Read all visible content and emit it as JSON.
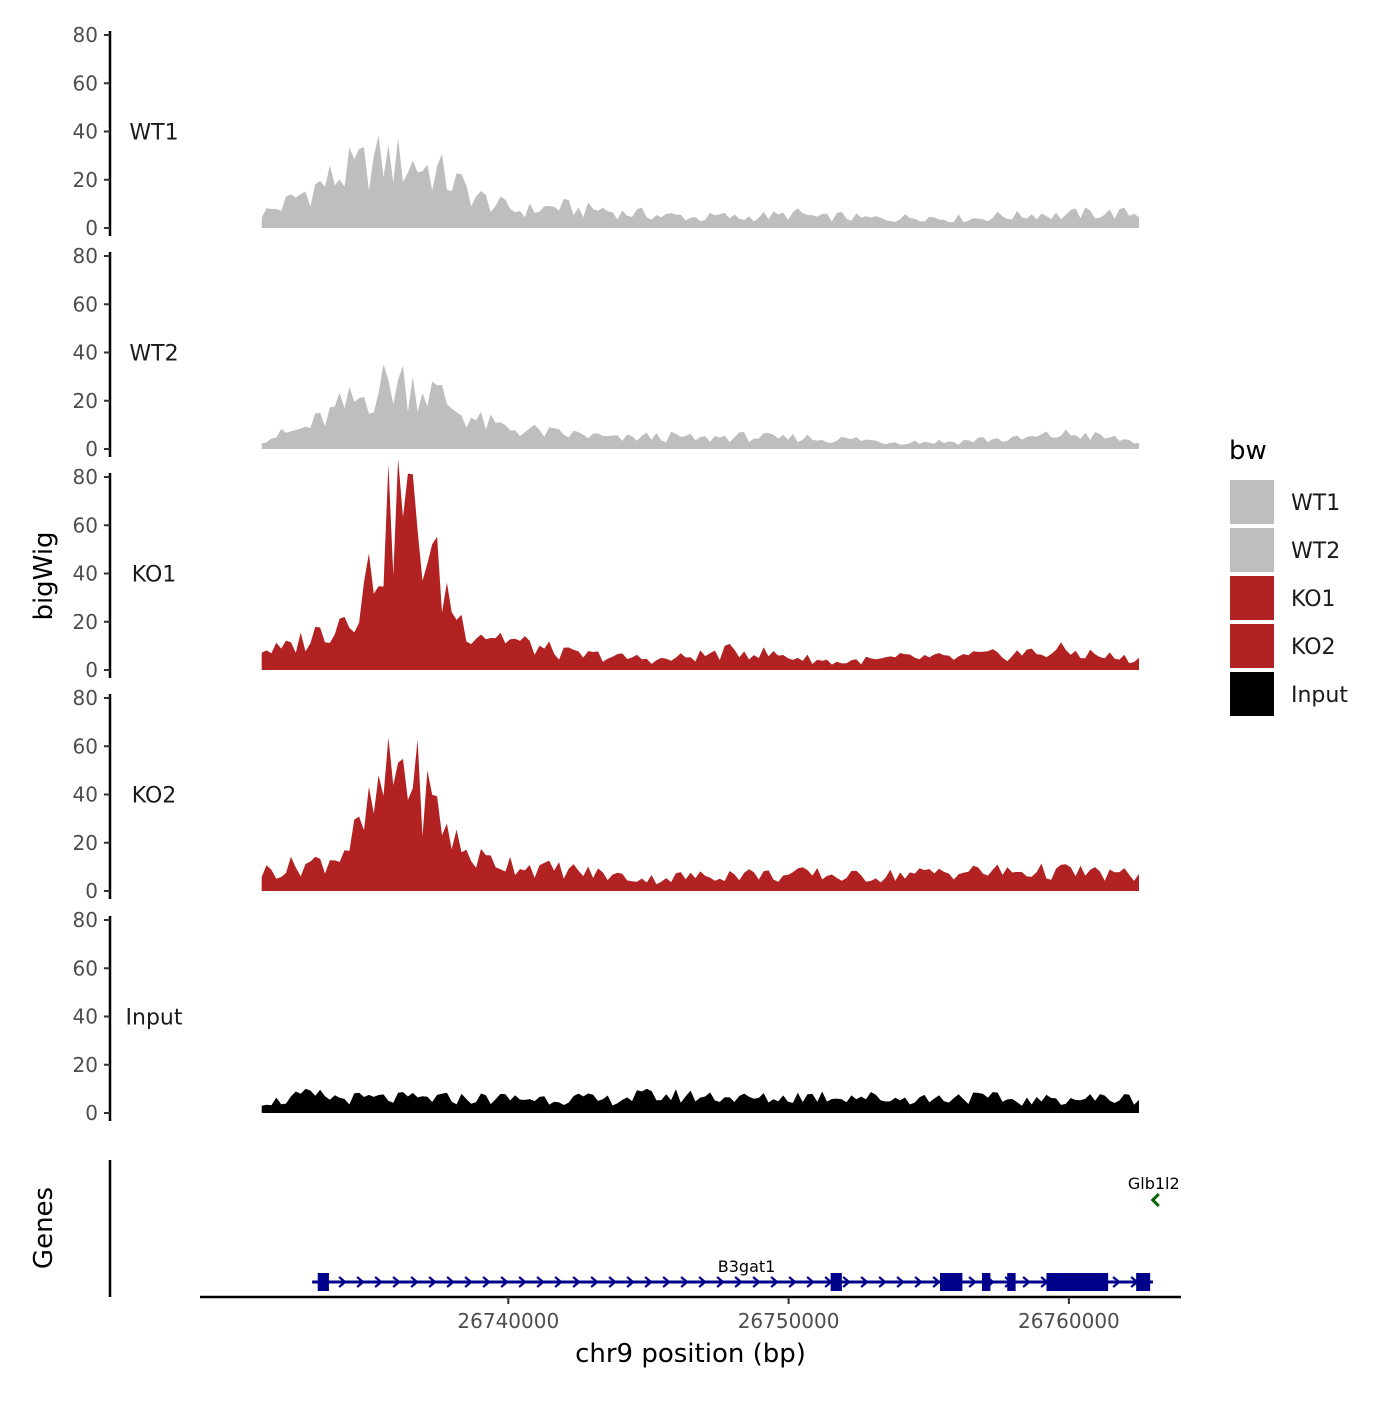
{
  "chart_data": {
    "type": "area",
    "title": "",
    "xlabel": "chr9 position (bp)",
    "ylabel": "bigWig",
    "genes_label": "Genes",
    "xlim": [
      26729000,
      26764000
    ],
    "ylim": [
      0,
      80
    ],
    "yticks": [
      0,
      20,
      40,
      60,
      80
    ],
    "ytick_labels": [
      "0",
      "20",
      "40",
      "60",
      "80"
    ],
    "xticks": [
      26740000,
      26750000,
      26760000
    ],
    "xtick_labels": [
      "26740000",
      "26750000",
      "26760000"
    ],
    "legend": {
      "title": "bw",
      "position": "right",
      "items": [
        {
          "label": "WT1",
          "color": "#bebebe"
        },
        {
          "label": "WT2",
          "color": "#bebebe"
        },
        {
          "label": "KO1",
          "color": "#b22222"
        },
        {
          "label": "KO2",
          "color": "#b22222"
        },
        {
          "label": "Input",
          "color": "#000000"
        }
      ]
    },
    "x_start": 26731200,
    "x_end": 26762500,
    "series": [
      {
        "name": "WT1",
        "color": "#bebebe",
        "values": [
          6,
          9,
          14,
          18,
          22,
          25,
          28,
          27,
          26,
          22,
          17,
          12,
          9,
          7,
          8,
          9,
          7,
          8,
          6,
          6,
          5,
          5,
          4,
          5,
          4,
          5,
          5,
          6,
          4,
          5,
          4,
          4,
          4,
          5,
          4,
          4,
          4,
          5,
          5,
          6,
          5,
          6,
          6,
          6,
          6
        ]
      },
      {
        "name": "WT2",
        "color": "#bebebe",
        "values": [
          4,
          6,
          8,
          12,
          17,
          21,
          26,
          28,
          26,
          21,
          15,
          11,
          9,
          8,
          7,
          6,
          6,
          5,
          4,
          5,
          5,
          5,
          4,
          5,
          5,
          5,
          4,
          5,
          4,
          4,
          4,
          3,
          3,
          3,
          3,
          3,
          4,
          4,
          4,
          5,
          6,
          6,
          5,
          4,
          3
        ]
      },
      {
        "name": "KO1",
        "color": "#b22222",
        "values": [
          9,
          8,
          12,
          16,
          22,
          30,
          52,
          72,
          55,
          36,
          20,
          16,
          14,
          11,
          9,
          7,
          6,
          6,
          5,
          5,
          4,
          5,
          6,
          7,
          8,
          7,
          6,
          5,
          4,
          3,
          4,
          4,
          5,
          5,
          5,
          5,
          6,
          6,
          7,
          7,
          8,
          7,
          6,
          5,
          4
        ]
      },
      {
        "name": "KO2",
        "color": "#b22222",
        "values": [
          8,
          9,
          11,
          12,
          16,
          25,
          40,
          53,
          42,
          30,
          17,
          13,
          12,
          11,
          9,
          9,
          8,
          7,
          6,
          5,
          5,
          6,
          6,
          7,
          7,
          7,
          6,
          7,
          7,
          6,
          6,
          6,
          7,
          7,
          8,
          8,
          8,
          8,
          8,
          8,
          8,
          8,
          7,
          7,
          6
        ]
      },
      {
        "name": "Input",
        "color": "#000000",
        "values": [
          5,
          5,
          7,
          7,
          6,
          6,
          6,
          6,
          6,
          6,
          6,
          6,
          6,
          6,
          6,
          6,
          6,
          5,
          6,
          7,
          7,
          7,
          7,
          7,
          6,
          6,
          6,
          7,
          7,
          7,
          7,
          6,
          6,
          6,
          6,
          7,
          6,
          6,
          5,
          5,
          6,
          6,
          6,
          6,
          6
        ]
      }
    ],
    "genes": [
      {
        "name": "B3gat1",
        "strand": "+",
        "color": "#00008b",
        "start": 26733000,
        "end": 26763000,
        "exons": [
          [
            26733200,
            26733600
          ],
          [
            26751500,
            26751900
          ],
          [
            26755400,
            26756200
          ],
          [
            26756900,
            26757200
          ],
          [
            26757800,
            26758100
          ],
          [
            26759200,
            26761400
          ],
          [
            26762400,
            26762900
          ]
        ]
      },
      {
        "name": "Glb1l2",
        "strand": "-",
        "color": "#006400",
        "start": 26762900,
        "end": 26763100,
        "exons": []
      }
    ]
  }
}
